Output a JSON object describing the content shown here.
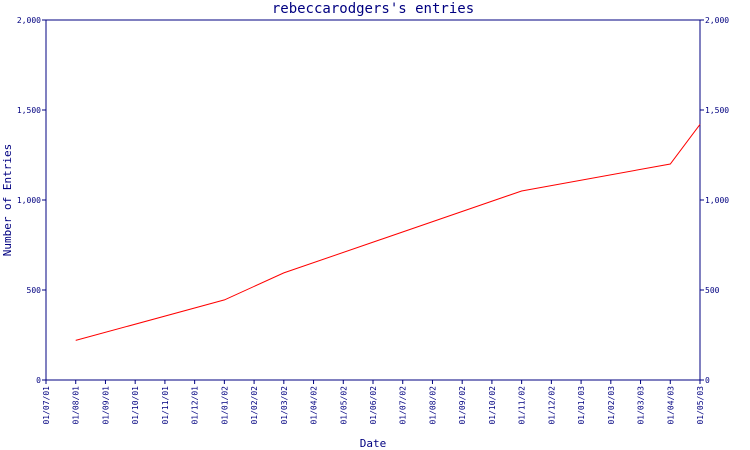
{
  "chart_data": {
    "type": "line",
    "title": "rebeccarodgers's entries",
    "xlabel": "Date",
    "ylabel": "Number of Entries",
    "ylim": [
      0,
      2000
    ],
    "y_ticks": [
      0,
      500,
      1000,
      1500,
      2000
    ],
    "y_tick_labels": [
      "0",
      "500",
      "1,000",
      "1,500",
      "2,000"
    ],
    "x_tick_labels": [
      "01/07/01",
      "01/08/01",
      "01/09/01",
      "01/10/01",
      "01/11/01",
      "01/12/01",
      "01/01/02",
      "01/02/02",
      "01/03/02",
      "01/04/02",
      "01/05/02",
      "01/06/02",
      "01/07/02",
      "01/08/02",
      "01/09/02",
      "01/10/02",
      "01/11/02",
      "01/12/02",
      "01/01/03",
      "01/02/03",
      "01/03/03",
      "01/04/03",
      "01/05/03"
    ],
    "grid": false,
    "series": [
      {
        "color": "#ff0000",
        "points": [
          {
            "x": "01/08/01",
            "y": 220
          },
          {
            "x": "01/01/02",
            "y": 445
          },
          {
            "x": "01/03/02",
            "y": 595
          },
          {
            "x": "01/11/02",
            "y": 1050
          },
          {
            "x": "01/04/03",
            "y": 1200
          },
          {
            "x": "01/05/03",
            "y": 1420
          }
        ]
      }
    ]
  }
}
